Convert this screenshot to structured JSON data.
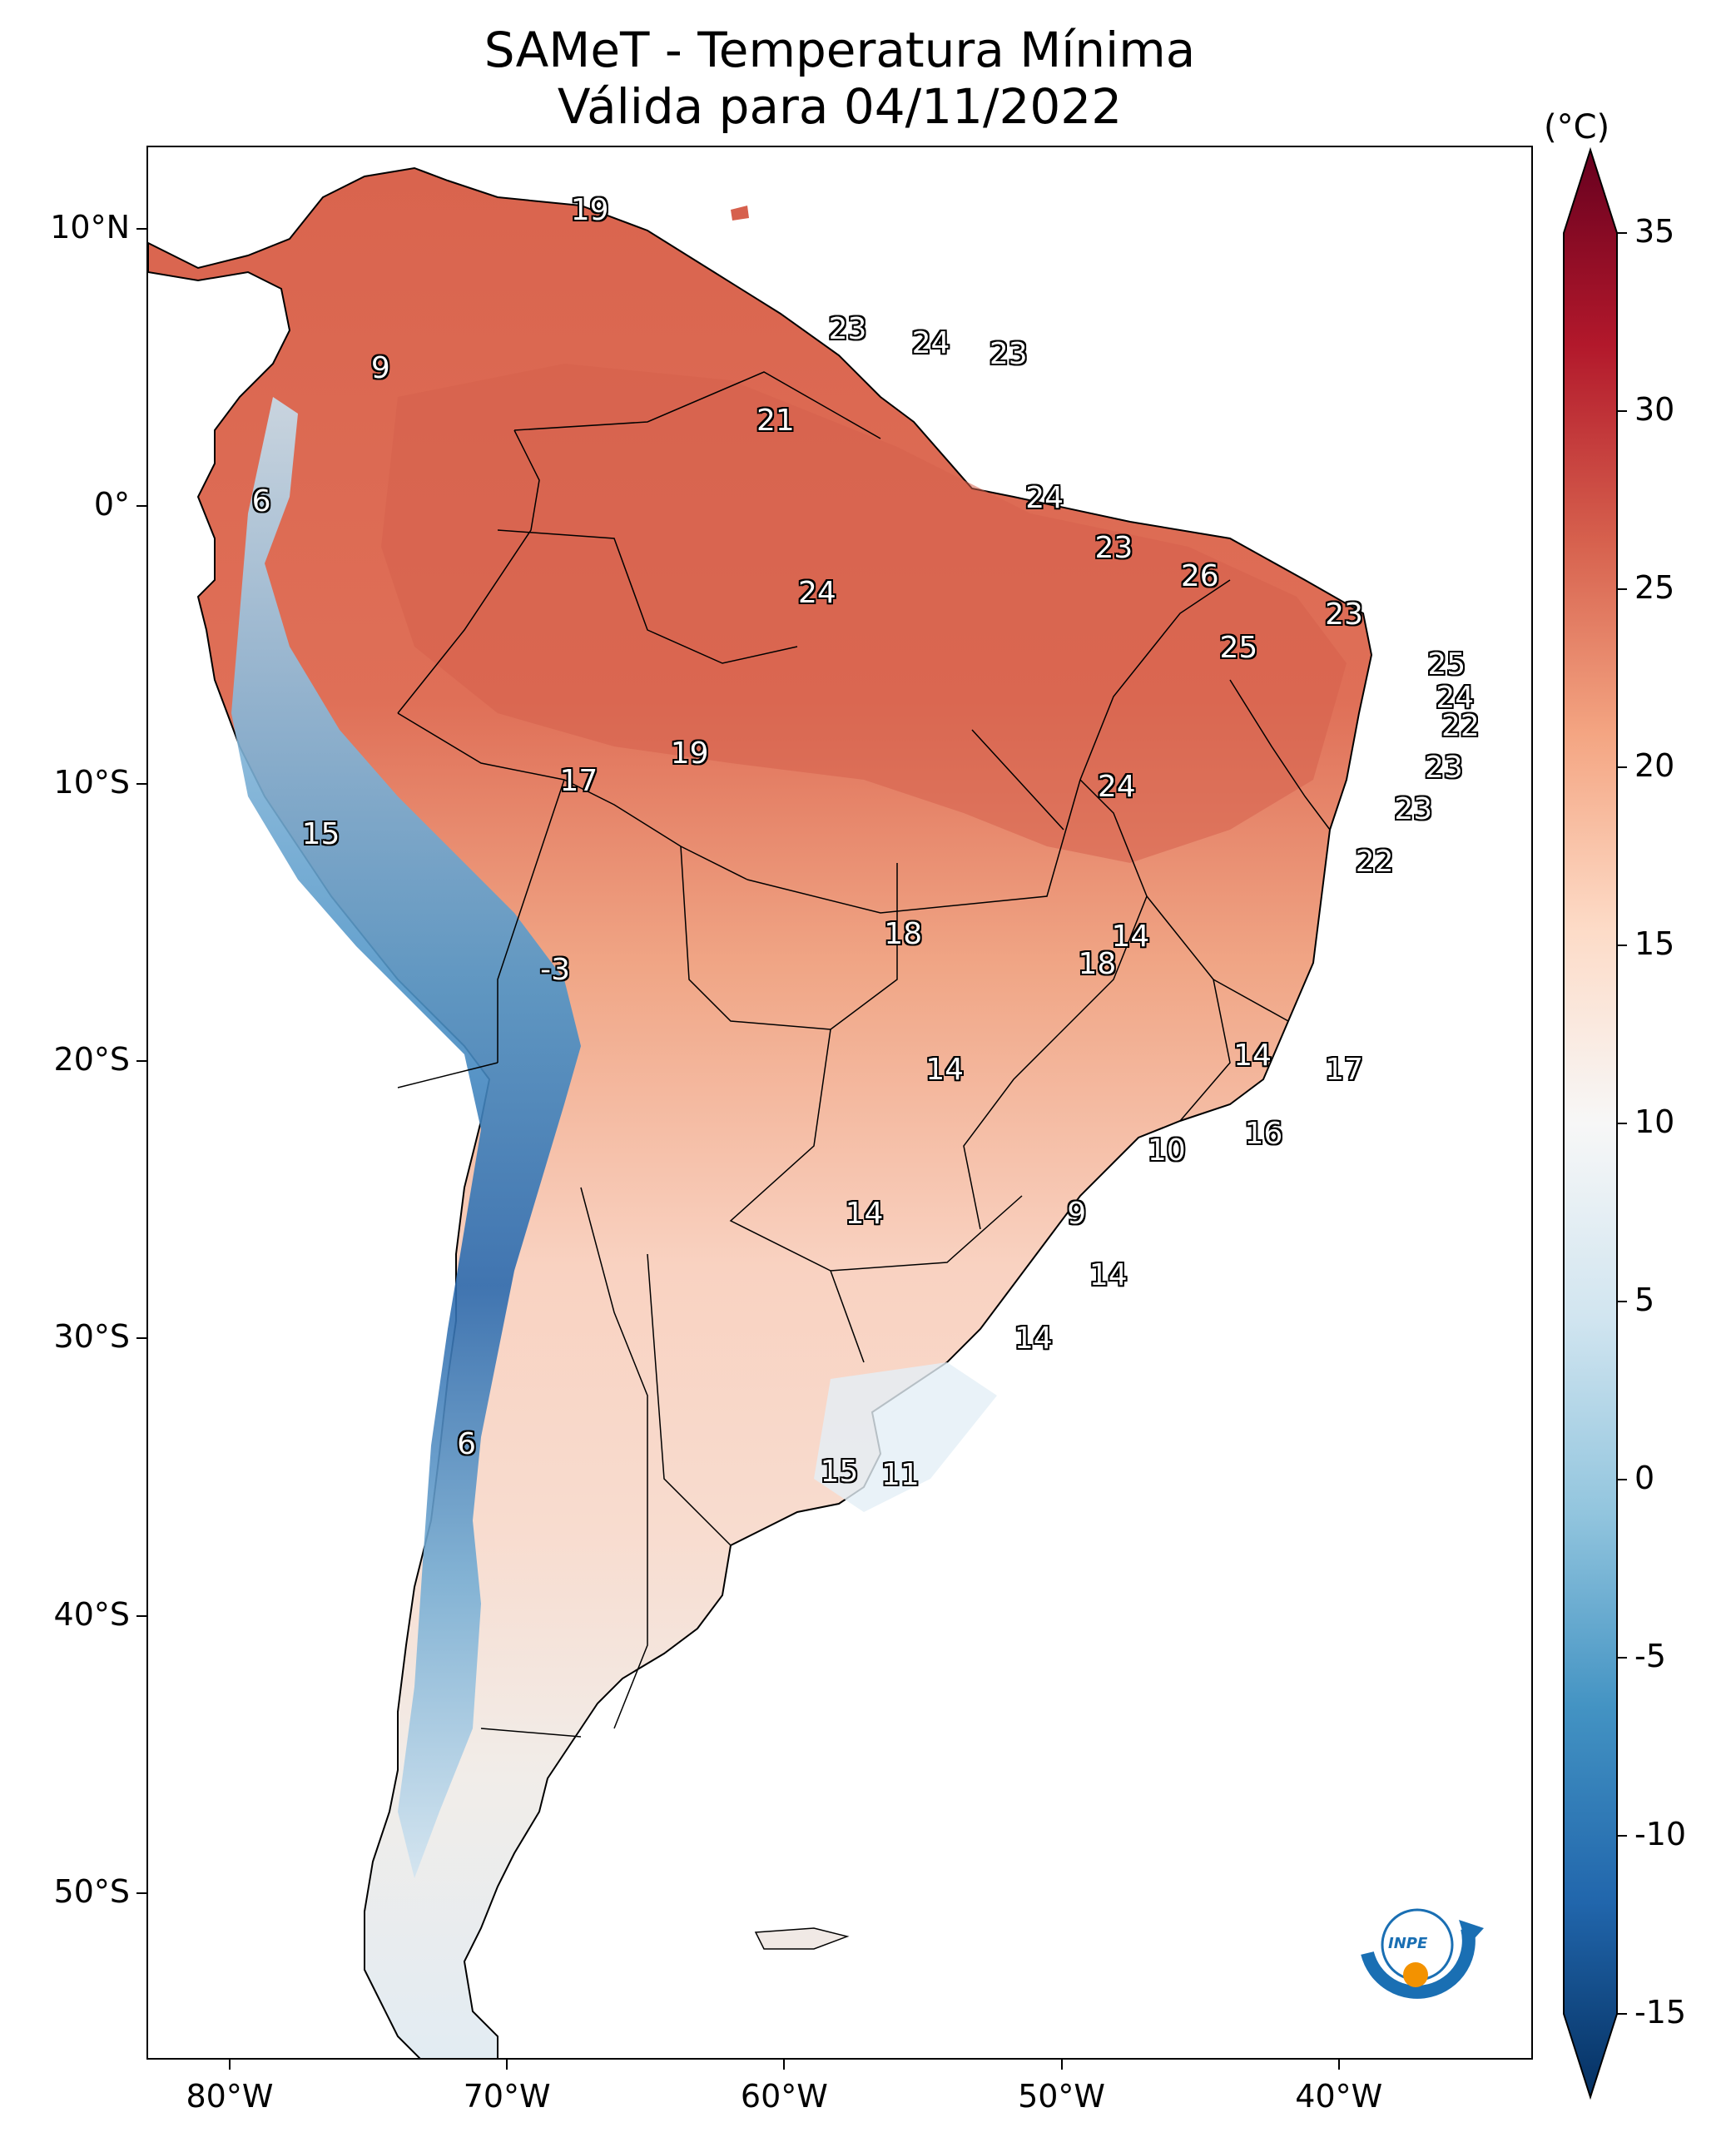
{
  "title": {
    "line1": "SAMeT - Temperatura Mínima",
    "line2": "Válida para 04/11/2022"
  },
  "axes": {
    "lat_labels": [
      {
        "text": "10°N",
        "lat": 10
      },
      {
        "text": "0°",
        "lat": 0
      },
      {
        "text": "10°S",
        "lat": -10
      },
      {
        "text": "20°S",
        "lat": -20
      },
      {
        "text": "30°S",
        "lat": -30
      },
      {
        "text": "40°S",
        "lat": -40
      },
      {
        "text": "50°S",
        "lat": -50
      }
    ],
    "lon_labels": [
      {
        "text": "80°W",
        "lon": -80
      },
      {
        "text": "70°W",
        "lon": -70
      },
      {
        "text": "60°W",
        "lon": -60
      },
      {
        "text": "50°W",
        "lon": -50
      },
      {
        "text": "40°W",
        "lon": -40
      }
    ],
    "extent": {
      "lon_min": -83,
      "lon_max": -33,
      "lat_min": -56,
      "lat_max": 13
    }
  },
  "colorbar": {
    "unit": "(°C)",
    "ticks": [
      "35",
      "30",
      "25",
      "20",
      "15",
      "10",
      "5",
      "0",
      "-5",
      "-10",
      "-15"
    ],
    "range": [
      -15,
      35
    ],
    "colors": [
      "#67001f",
      "#b2182b",
      "#d6604d",
      "#f4a582",
      "#fddbc7",
      "#f7f7f7",
      "#d1e5f0",
      "#92c5de",
      "#4393c3",
      "#2166ac",
      "#053061"
    ]
  },
  "station_labels": [
    {
      "text": "19",
      "lon": -67.1,
      "lat": 10.7
    },
    {
      "text": "23",
      "lon": -57.8,
      "lat": 6.4
    },
    {
      "text": "24",
      "lon": -54.8,
      "lat": 5.9
    },
    {
      "text": "23",
      "lon": -52.0,
      "lat": 5.5
    },
    {
      "text": "9",
      "lon": -74.3,
      "lat": 5.0
    },
    {
      "text": "21",
      "lon": -60.4,
      "lat": 3.1
    },
    {
      "text": "6",
      "lon": -78.6,
      "lat": 0.2
    },
    {
      "text": "24",
      "lon": -50.7,
      "lat": 0.3
    },
    {
      "text": "23",
      "lon": -48.2,
      "lat": -1.5
    },
    {
      "text": "26",
      "lon": -45.1,
      "lat": -2.5
    },
    {
      "text": "24",
      "lon": -58.9,
      "lat": -3.1
    },
    {
      "text": "23",
      "lon": -39.9,
      "lat": -3.9
    },
    {
      "text": "25",
      "lon": -43.7,
      "lat": -5.1
    },
    {
      "text": "25",
      "lon": -36.2,
      "lat": -5.7
    },
    {
      "text": "24",
      "lon": -35.9,
      "lat": -6.9
    },
    {
      "text": "22",
      "lon": -35.7,
      "lat": -7.9
    },
    {
      "text": "19",
      "lon": -63.5,
      "lat": -8.9
    },
    {
      "text": "23",
      "lon": -36.3,
      "lat": -9.4
    },
    {
      "text": "17",
      "lon": -67.5,
      "lat": -9.9
    },
    {
      "text": "24",
      "lon": -48.1,
      "lat": -10.1
    },
    {
      "text": "23",
      "lon": -37.4,
      "lat": -10.9
    },
    {
      "text": "15",
      "lon": -76.8,
      "lat": -11.8
    },
    {
      "text": "22",
      "lon": -38.8,
      "lat": -12.8
    },
    {
      "text": "18",
      "lon": -55.8,
      "lat": -15.4
    },
    {
      "text": "14",
      "lon": -47.6,
      "lat": -15.5
    },
    {
      "text": "18",
      "lon": -48.8,
      "lat": -16.5
    },
    {
      "text": "-3",
      "lon": -68.2,
      "lat": -16.7
    },
    {
      "text": "14",
      "lon": -43.2,
      "lat": -19.8
    },
    {
      "text": "14",
      "lon": -54.3,
      "lat": -20.3
    },
    {
      "text": "17",
      "lon": -39.9,
      "lat": -20.3
    },
    {
      "text": "16",
      "lon": -42.8,
      "lat": -22.6
    },
    {
      "text": "10",
      "lon": -46.3,
      "lat": -23.2
    },
    {
      "text": "14",
      "lon": -57.2,
      "lat": -25.5
    },
    {
      "text": "9",
      "lon": -49.2,
      "lat": -25.5
    },
    {
      "text": "14",
      "lon": -48.4,
      "lat": -27.7
    },
    {
      "text": "14",
      "lon": -51.1,
      "lat": -30.0
    },
    {
      "text": "6",
      "lon": -71.2,
      "lat": -33.8
    },
    {
      "text": "15",
      "lon": -58.1,
      "lat": -34.8
    },
    {
      "text": "11",
      "lon": -55.9,
      "lat": -34.9
    }
  ],
  "logo": {
    "text": "INPE"
  }
}
